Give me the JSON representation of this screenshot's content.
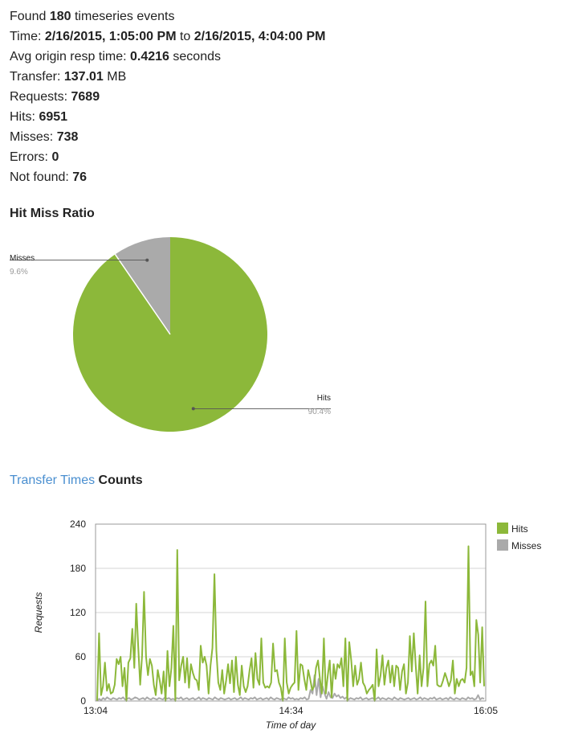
{
  "summary": {
    "found_prefix": "Found",
    "found_count": "180",
    "found_suffix": "timeseries events",
    "time_label": "Time:",
    "time_start": "2/16/2015, 1:05:00 PM",
    "time_to": "to",
    "time_end": "2/16/2015, 4:04:00 PM",
    "avg_label": "Avg origin resp time:",
    "avg_value": "0.4216",
    "avg_unit": "seconds",
    "transfer_label": "Transfer:",
    "transfer_value": "137.01",
    "transfer_unit": "MB",
    "requests_label": "Requests:",
    "requests_value": "7689",
    "hits_label": "Hits:",
    "hits_value": "6951",
    "misses_label": "Misses:",
    "misses_value": "738",
    "errors_label": "Errors:",
    "errors_value": "0",
    "notfound_label": "Not found:",
    "notfound_value": "76"
  },
  "hit_miss": {
    "title": "Hit Miss Ratio"
  },
  "transfer": {
    "title_link": "Transfer Times",
    "title_bold": "Counts"
  },
  "colors": {
    "hits": "#8cb83a",
    "misses": "#aaaaaa",
    "link": "#4a8fd0"
  },
  "chart_data": [
    {
      "type": "pie",
      "title": "Hit Miss Ratio",
      "slices": [
        {
          "label": "Hits",
          "value": 6951,
          "percent": "90.4%",
          "color": "#8cb83a"
        },
        {
          "label": "Misses",
          "value": 738,
          "percent": "9.6%",
          "color": "#aaaaaa"
        }
      ]
    },
    {
      "type": "line",
      "title": "",
      "xlabel": "Time of day",
      "ylabel": "Requests",
      "ylim": [
        0,
        240
      ],
      "yticks": [
        0,
        60,
        120,
        180,
        240
      ],
      "xrange": [
        "13:04",
        "16:05"
      ],
      "xticks": [
        "13:04",
        "14:34",
        "16:05"
      ],
      "grid": true,
      "legend": "right",
      "series": [
        {
          "name": "Hits",
          "color": "#8cb83a",
          "values": [
            0,
            92,
            8,
            20,
            52,
            14,
            23,
            10,
            12,
            22,
            57,
            50,
            60,
            20,
            45,
            0,
            52,
            58,
            98,
            45,
            132,
            75,
            22,
            62,
            148,
            60,
            35,
            57,
            48,
            22,
            8,
            42,
            28,
            10,
            40,
            0,
            68,
            20,
            45,
            102,
            0,
            205,
            28,
            48,
            60,
            25,
            58,
            18,
            50,
            38,
            30,
            28,
            15,
            75,
            52,
            60,
            48,
            10,
            48,
            72,
            172,
            68,
            25,
            15,
            42,
            10,
            28,
            50,
            24,
            55,
            12,
            60,
            22,
            8,
            48,
            20,
            12,
            20,
            42,
            58,
            18,
            65,
            30,
            22,
            85,
            25,
            18,
            20,
            18,
            25,
            78,
            40,
            42,
            25,
            18,
            0,
            85,
            25,
            10,
            18,
            22,
            25,
            95,
            15,
            50,
            48,
            30,
            15,
            42,
            30,
            15,
            20,
            45,
            55,
            30,
            10,
            85,
            10,
            35,
            55,
            5,
            50,
            30,
            50,
            45,
            58,
            20,
            85,
            0,
            80,
            55,
            20,
            48,
            22,
            30,
            52,
            25,
            20,
            10,
            15,
            18,
            22,
            0,
            70,
            20,
            35,
            62,
            22,
            45,
            55,
            25,
            48,
            20,
            48,
            45,
            15,
            40,
            50,
            10,
            25,
            88,
            40,
            92,
            48,
            10,
            62,
            20,
            45,
            135,
            20,
            50,
            55,
            48,
            75,
            22,
            20,
            20,
            28,
            38,
            30,
            20,
            28,
            55,
            10,
            30,
            20,
            28,
            30,
            25,
            45,
            210,
            35,
            40,
            20,
            110,
            90,
            25,
            100,
            20
          ]
        },
        {
          "name": "Misses",
          "color": "#aaaaaa",
          "values": [
            0,
            3,
            1,
            4,
            2,
            5,
            3,
            2,
            4,
            3,
            2,
            4,
            3,
            5,
            2,
            3,
            4,
            2,
            3,
            5,
            4,
            2,
            3,
            4,
            2,
            5,
            3,
            2,
            4,
            3,
            2,
            4,
            3,
            2,
            5,
            3,
            4,
            2,
            3,
            2,
            4,
            3,
            5,
            2,
            3,
            4,
            2,
            3,
            4,
            2,
            3,
            5,
            2,
            4,
            3,
            2,
            4,
            3,
            2,
            5,
            3,
            2,
            4,
            3,
            2,
            3,
            4,
            2,
            3,
            4,
            2,
            3,
            5,
            2,
            4,
            3,
            2,
            4,
            3,
            5,
            2,
            3,
            4,
            2,
            3,
            4,
            2,
            5,
            3,
            2,
            4,
            3,
            2,
            4,
            3,
            2,
            5,
            3,
            4,
            2,
            3,
            2,
            4,
            3,
            5,
            2,
            3,
            15,
            10,
            35,
            8,
            30,
            5,
            20,
            10,
            3,
            12,
            5,
            4,
            10,
            6,
            8,
            4,
            6,
            3,
            5,
            2,
            4,
            3,
            2,
            4,
            3,
            5,
            2,
            3,
            4,
            2,
            3,
            4,
            2,
            3,
            5,
            2,
            4,
            3,
            2,
            4,
            3,
            2,
            5,
            3,
            2,
            4,
            3,
            2,
            3,
            4,
            2,
            3,
            4,
            2,
            3,
            5,
            2,
            4,
            3,
            2,
            4,
            3,
            5,
            2,
            3,
            4,
            2,
            3,
            4,
            2,
            5,
            3,
            2,
            4,
            3,
            2,
            4,
            3,
            2,
            5,
            3,
            4,
            2,
            3,
            8,
            2,
            4,
            3
          ]
        }
      ]
    }
  ]
}
